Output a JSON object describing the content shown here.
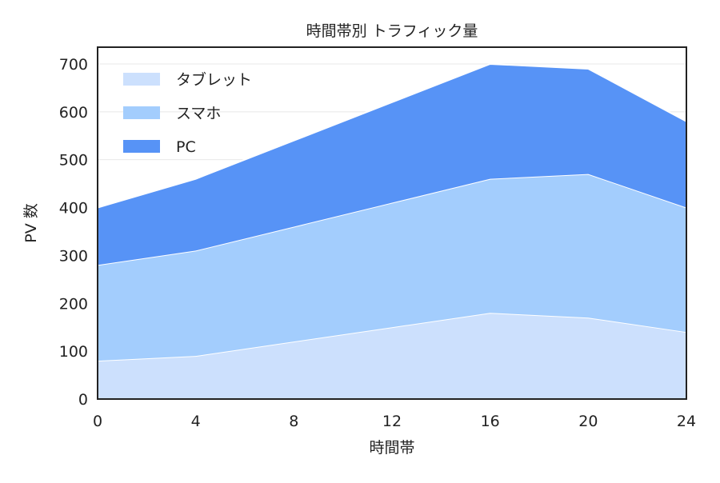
{
  "chart_data": {
    "type": "area",
    "stacked": true,
    "title": "時間帯別 トラフィック量",
    "xlabel": "時間帯",
    "ylabel": "PV 数",
    "x": [
      0,
      4,
      8,
      12,
      16,
      20,
      24
    ],
    "xticks": [
      0,
      4,
      8,
      12,
      16,
      20,
      24
    ],
    "yticks": [
      0,
      100,
      200,
      300,
      400,
      500,
      600,
      700
    ],
    "xlim": [
      0,
      24
    ],
    "ylim": [
      0,
      735
    ],
    "grid": true,
    "legend_position": "top-left",
    "series": [
      {
        "name": "タブレット",
        "color": "#cce0fd",
        "values": [
          80,
          90,
          120,
          150,
          180,
          170,
          140
        ]
      },
      {
        "name": "スマホ",
        "color": "#a3cdfd",
        "values": [
          200,
          220,
          240,
          260,
          280,
          300,
          260
        ]
      },
      {
        "name": "PC",
        "color": "#5793f6",
        "values": [
          120,
          150,
          180,
          210,
          240,
          220,
          180
        ]
      }
    ]
  }
}
